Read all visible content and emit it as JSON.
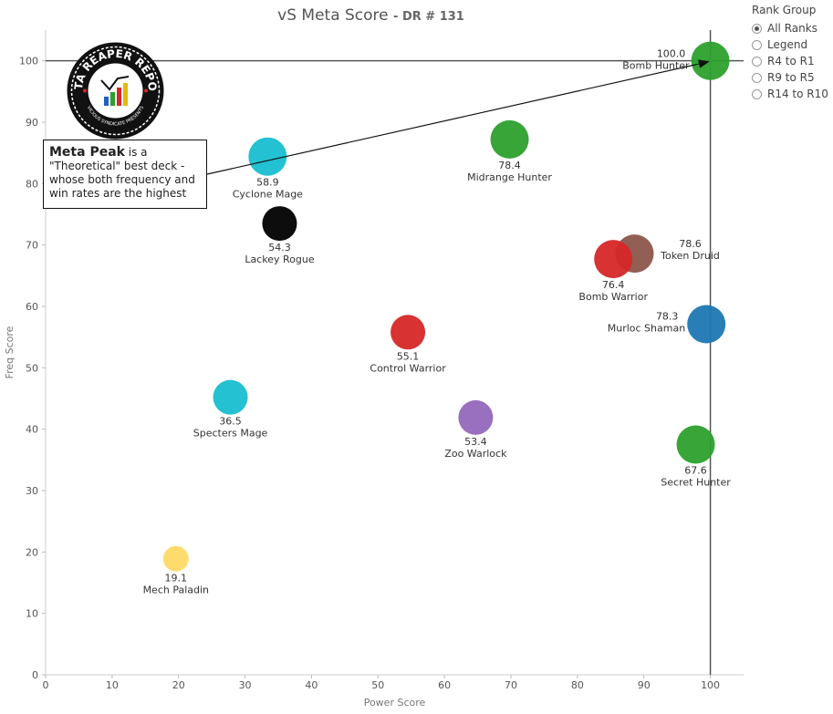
{
  "title": "vS Meta Score",
  "subtitle": "DR # 131",
  "legend": {
    "title": "Rank Group",
    "options": [
      {
        "label": "All Ranks",
        "selected": true
      },
      {
        "label": "Legend",
        "selected": false
      },
      {
        "label": "R4 to R1",
        "selected": false
      },
      {
        "label": "R9 to R5",
        "selected": false
      },
      {
        "label": "R14 to R10",
        "selected": false
      }
    ]
  },
  "annotation": {
    "bold": "Meta Peak",
    "text": " is a \"Theoretical\" best deck - whose both frequency and win rates are the highest"
  },
  "logo": {
    "text": "DATA REAPER REPORT",
    "subtext": "VICIOUS SYNDICATE PRESENTS"
  },
  "chart_data": {
    "type": "scatter",
    "xlabel": "Power Score",
    "ylabel": "Freq Score",
    "xlim": [
      0,
      105
    ],
    "ylim": [
      0,
      105
    ],
    "xticks": [
      0,
      10,
      20,
      30,
      40,
      50,
      60,
      70,
      80,
      90,
      100
    ],
    "yticks": [
      0,
      10,
      20,
      30,
      40,
      50,
      60,
      70,
      80,
      90,
      100
    ],
    "reference_lines": {
      "x": 100,
      "y": 100
    },
    "points": [
      {
        "name": "Bomb Hunter",
        "score": "100.0",
        "x": 100.0,
        "y": 100.0,
        "color": "#2ca02c",
        "label_side": "left"
      },
      {
        "name": "Midrange Hunter",
        "score": "78.4",
        "x": 69.8,
        "y": 87.2,
        "color": "#2ca02c",
        "label_side": "below"
      },
      {
        "name": "Cyclone Mage",
        "score": "58.9",
        "x": 33.4,
        "y": 84.4,
        "color": "#17becf",
        "label_side": "below"
      },
      {
        "name": "Lackey Rogue",
        "score": "54.3",
        "x": 35.2,
        "y": 73.5,
        "color": "#000000",
        "label_side": "below"
      },
      {
        "name": "Token Druid",
        "score": "78.6",
        "x": 88.6,
        "y": 68.6,
        "color": "#8c564b",
        "label_side": "right"
      },
      {
        "name": "Bomb Warrior",
        "score": "76.4",
        "x": 85.4,
        "y": 67.7,
        "color": "#d62728",
        "label_side": "below"
      },
      {
        "name": "Murloc Shaman",
        "score": "78.3",
        "x": 99.4,
        "y": 57.1,
        "color": "#1f77b4",
        "label_side": "left"
      },
      {
        "name": "Control Warrior",
        "score": "55.1",
        "x": 54.5,
        "y": 55.8,
        "color": "#d62728",
        "label_side": "below"
      },
      {
        "name": "Specters Mage",
        "score": "36.5",
        "x": 27.8,
        "y": 45.2,
        "color": "#17becf",
        "label_side": "below"
      },
      {
        "name": "Zoo Warlock",
        "score": "53.4",
        "x": 64.7,
        "y": 41.9,
        "color": "#9467bd",
        "label_side": "below"
      },
      {
        "name": "Secret Hunter",
        "score": "67.6",
        "x": 97.8,
        "y": 37.5,
        "color": "#2ca02c",
        "label_side": "below"
      },
      {
        "name": "Mech Paladin",
        "score": "19.1",
        "x": 19.6,
        "y": 18.9,
        "color": "#ffd966",
        "label_side": "below"
      }
    ]
  }
}
